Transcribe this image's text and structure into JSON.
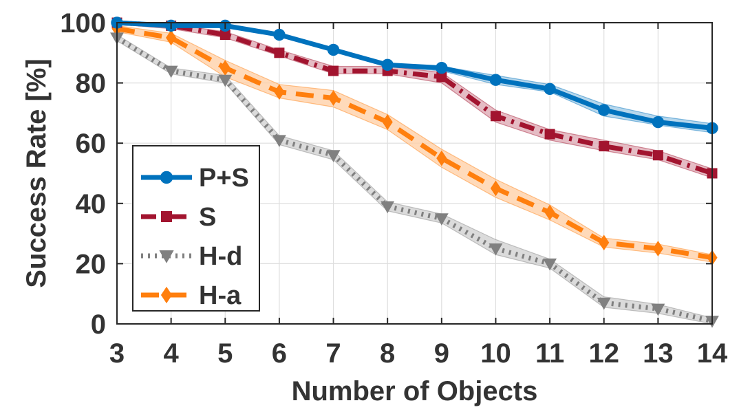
{
  "chart_data": {
    "type": "line",
    "xlabel": "Number of Objects",
    "ylabel": "Success Rate [%]",
    "x": [
      3,
      4,
      5,
      6,
      7,
      8,
      9,
      10,
      11,
      12,
      13,
      14
    ],
    "xlim": [
      3,
      14
    ],
    "ylim": [
      0,
      100
    ],
    "xticks": [
      3,
      4,
      5,
      6,
      7,
      8,
      9,
      10,
      11,
      12,
      13,
      14
    ],
    "yticks": [
      0,
      20,
      40,
      60,
      80,
      100
    ],
    "grid": true,
    "legend_position": "left",
    "series": [
      {
        "name": "P+S",
        "color": "#0072BD",
        "marker": "circle",
        "line_style": "solid",
        "values": [
          100,
          99,
          99,
          96,
          91,
          86,
          85,
          81,
          78,
          71,
          67,
          65
        ],
        "band": [
          [
            100,
            100
          ],
          [
            98.5,
            99.5
          ],
          [
            98.5,
            99.5
          ],
          [
            95.5,
            96.5
          ],
          [
            90.5,
            91.5
          ],
          [
            85.5,
            86.5
          ],
          [
            84,
            85.5
          ],
          [
            79.5,
            82.5
          ],
          [
            77,
            79.5
          ],
          [
            69,
            73
          ],
          [
            66,
            69
          ],
          [
            63.5,
            66.5
          ]
        ]
      },
      {
        "name": "S",
        "color": "#A2142F",
        "marker": "square",
        "line_style": "dashdot",
        "values": [
          100,
          99,
          96,
          90,
          84,
          84,
          82,
          69,
          63,
          59,
          56,
          50
        ],
        "band": [
          [
            99.5,
            100
          ],
          [
            98,
            99.5
          ],
          [
            95,
            97
          ],
          [
            89,
            91
          ],
          [
            83,
            85.5
          ],
          [
            83,
            85.5
          ],
          [
            80,
            83.5
          ],
          [
            67,
            71
          ],
          [
            61,
            64.5
          ],
          [
            57.5,
            61
          ],
          [
            54.5,
            57.5
          ],
          [
            48.5,
            51.5
          ]
        ]
      },
      {
        "name": "H-d",
        "color": "#808080",
        "marker": "triangle-down",
        "line_style": "dotted",
        "values": [
          95,
          84,
          81,
          61,
          56,
          39,
          35,
          25,
          20,
          7,
          5,
          1
        ],
        "band": [
          [
            94,
            96
          ],
          [
            83,
            85
          ],
          [
            80,
            82.5
          ],
          [
            59.5,
            62.5
          ],
          [
            54.5,
            57.5
          ],
          [
            37.5,
            40.5
          ],
          [
            33.5,
            36.5
          ],
          [
            23,
            28
          ],
          [
            18.5,
            21.5
          ],
          [
            5.5,
            9
          ],
          [
            3.5,
            6.5
          ],
          [
            0,
            2
          ]
        ]
      },
      {
        "name": "H-a",
        "color": "#FF7F0E",
        "marker": "diamond",
        "line_style": "dashed",
        "values": [
          98,
          95,
          85,
          77,
          75,
          67,
          55,
          45,
          37,
          27,
          25,
          22
        ],
        "band": [
          [
            97,
            99
          ],
          [
            93.5,
            96.5
          ],
          [
            82,
            87.5
          ],
          [
            75,
            79.5
          ],
          [
            72,
            77.5
          ],
          [
            64.5,
            69.5
          ],
          [
            52,
            58
          ],
          [
            42,
            48
          ],
          [
            34.5,
            39.5
          ],
          [
            25.5,
            28.5
          ],
          [
            23.5,
            26.5
          ],
          [
            20.5,
            23
          ]
        ]
      }
    ]
  }
}
